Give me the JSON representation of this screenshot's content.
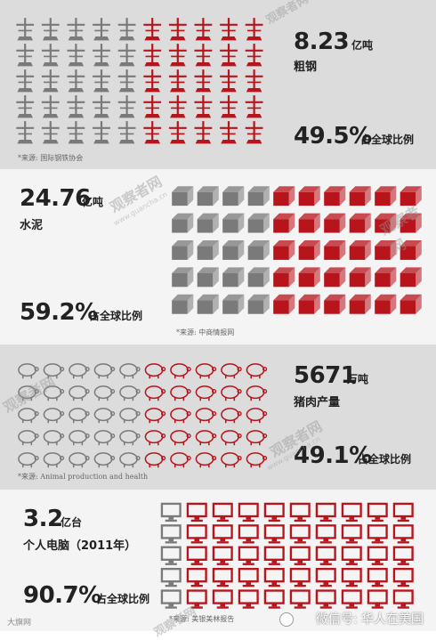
{
  "sections": [
    {
      "value": "8.23",
      "unit": "亿吨",
      "label": "粗钢",
      "percent": "49.5%",
      "percent_label": "占全球比例",
      "source": "*来源: 国际钢铁协会",
      "icon": "crane-tower-icon",
      "grid": {
        "cols": 10,
        "rows": 5,
        "share": 0.495
      }
    },
    {
      "value": "24.76",
      "unit": "亿吨",
      "label": "水泥",
      "percent": "59.2%",
      "percent_label": "占全球比例",
      "source": "*来源: 中商情报网",
      "icon": "cement-block-icon",
      "grid": {
        "cols": 10,
        "rows": 5,
        "share": 0.592
      }
    },
    {
      "value": "5671",
      "unit": "万吨",
      "label": "猪肉产量",
      "percent": "49.1%",
      "percent_label": "占全球比例",
      "source": "*来源: Animal production and health",
      "icon": "pig-icon",
      "grid": {
        "cols": 10,
        "rows": 5,
        "share": 0.491
      }
    },
    {
      "value": "3.2",
      "unit": "亿台",
      "label": "个人电脑（2011年）",
      "percent": "90.7%",
      "percent_label": "占全球比例",
      "source": "*来源: 美银美林报告",
      "icon": "computer-monitor-icon",
      "grid": {
        "cols": 10,
        "rows": 5,
        "share": 0.907
      }
    }
  ],
  "watermark": {
    "text": "观察者网",
    "url": "www.guancha.cn"
  },
  "footer": {
    "left": "大旗网",
    "right": "微信号: 华人在美国"
  },
  "colors": {
    "gray": "#7a7a7a",
    "red": "#b8141c",
    "text": "#222222"
  }
}
